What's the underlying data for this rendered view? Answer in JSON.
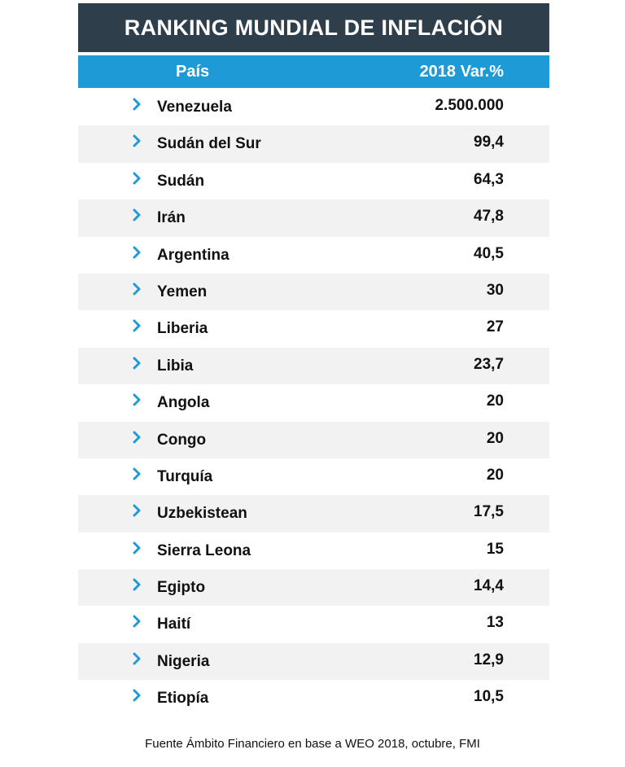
{
  "title": "RANKING MUNDIAL DE INFLACIÓN",
  "header": {
    "country": "País",
    "value": "2018 Var.%"
  },
  "accent_colors": {
    "title_bg": "#2f3e4b",
    "header_bg": "#1e9bd7",
    "chevron": "#1e9bd7",
    "row_shade": "#f2f2f2"
  },
  "row_icon": "chevron-right-icon",
  "chart_data": {
    "type": "table",
    "title": "RANKING MUNDIAL DE INFLACIÓN",
    "columns": [
      "País",
      "2018 Var.%"
    ],
    "rows": [
      {
        "country": "Venezuela",
        "value": "2.500.000"
      },
      {
        "country": "Sudán del Sur",
        "value": "99,4"
      },
      {
        "country": "Sudán",
        "value": "64,3"
      },
      {
        "country": "Irán",
        "value": "47,8"
      },
      {
        "country": "Argentina",
        "value": "40,5"
      },
      {
        "country": "Yemen",
        "value": "30"
      },
      {
        "country": "Liberia",
        "value": "27"
      },
      {
        "country": "Libia",
        "value": "23,7"
      },
      {
        "country": "Angola",
        "value": "20"
      },
      {
        "country": "Congo",
        "value": "20"
      },
      {
        "country": "Turquía",
        "value": "20"
      },
      {
        "country": "Uzbekistean",
        "value": "17,5"
      },
      {
        "country": "Sierra Leona",
        "value": "15"
      },
      {
        "country": "Egipto",
        "value": "14,4"
      },
      {
        "country": "Haití",
        "value": "13"
      },
      {
        "country": "Nigeria",
        "value": "12,9"
      },
      {
        "country": "Etiopía",
        "value": "10,5"
      }
    ]
  },
  "source": "Fuente Ámbito Financiero en base a WEO 2018, octubre, FMI"
}
